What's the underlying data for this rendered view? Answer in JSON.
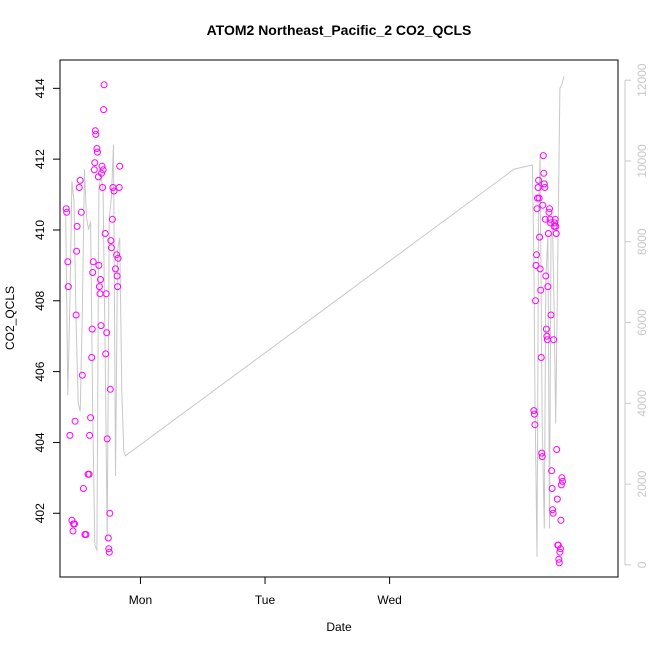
{
  "chart_data": {
    "type": "scatter",
    "title": "ATOM2 Northeast_Pacific_2 CO2_QCLS",
    "xlabel": "Date",
    "ylabel": "CO2_QCLS",
    "x_ticks": [
      "Mon",
      "Tue",
      "Wed"
    ],
    "y_ticks": [
      "402",
      "404",
      "406",
      "408",
      "410",
      "412",
      "414"
    ],
    "y2_ticks": [
      "0",
      "2000",
      "4000",
      "6000",
      "8000",
      "10000",
      "12000"
    ],
    "xlim_hours": [
      -15.5,
      92
    ],
    "ylim": [
      400.2,
      414.8
    ],
    "y2lim": [
      -300,
      12500
    ],
    "colors": {
      "points": "#ff00ff",
      "line": "#c8c8c8",
      "axis": "#000000",
      "right_axis": "#c8c8c8"
    },
    "series": [
      {
        "kind": "scatter",
        "points": [
          [
            -14.3,
            410.6
          ],
          [
            -14.2,
            410.5
          ],
          [
            -14.0,
            409.1
          ],
          [
            -13.9,
            408.4
          ],
          [
            -13.6,
            404.2
          ],
          [
            -13.2,
            401.8
          ],
          [
            -13.0,
            401.5
          ],
          [
            -12.9,
            401.7
          ],
          [
            -12.7,
            401.7
          ],
          [
            -12.6,
            404.6
          ],
          [
            -12.4,
            407.6
          ],
          [
            -12.3,
            409.4
          ],
          [
            -12.2,
            410.1
          ],
          [
            -11.8,
            411.2
          ],
          [
            -11.6,
            411.4
          ],
          [
            -11.4,
            410.5
          ],
          [
            -11.2,
            405.9
          ],
          [
            -11.0,
            402.7
          ],
          [
            -10.7,
            401.4
          ],
          [
            -10.5,
            401.4
          ],
          [
            -10.1,
            403.1
          ],
          [
            -9.9,
            403.1
          ],
          [
            -9.8,
            404.2
          ],
          [
            -9.6,
            404.7
          ],
          [
            -9.4,
            406.4
          ],
          [
            -9.3,
            407.2
          ],
          [
            -9.2,
            408.8
          ],
          [
            -9.1,
            409.1
          ],
          [
            -8.9,
            411.7
          ],
          [
            -8.8,
            411.9
          ],
          [
            -8.7,
            412.8
          ],
          [
            -8.6,
            412.7
          ],
          [
            -8.4,
            412.3
          ],
          [
            -8.3,
            412.2
          ],
          [
            -8.1,
            411.5
          ],
          [
            -8.0,
            409.0
          ],
          [
            -7.9,
            408.4
          ],
          [
            -7.8,
            408.2
          ],
          [
            -7.7,
            408.6
          ],
          [
            -7.6,
            407.3
          ],
          [
            -7.5,
            411.6
          ],
          [
            -7.4,
            411.8
          ],
          [
            -7.3,
            411.2
          ],
          [
            -7.2,
            411.7
          ],
          [
            -7.1,
            413.4
          ],
          [
            -7.0,
            414.1
          ],
          [
            -6.8,
            409.9
          ],
          [
            -6.7,
            406.5
          ],
          [
            -6.6,
            408.2
          ],
          [
            -6.5,
            407.1
          ],
          [
            -6.4,
            404.1
          ],
          [
            -6.2,
            401.3
          ],
          [
            -6.1,
            401.0
          ],
          [
            -6.0,
            400.9
          ],
          [
            -5.9,
            402.0
          ],
          [
            -5.8,
            405.5
          ],
          [
            -5.7,
            409.7
          ],
          [
            -5.6,
            409.5
          ],
          [
            -5.4,
            410.3
          ],
          [
            -5.3,
            411.2
          ],
          [
            -5.1,
            411.1
          ],
          [
            -4.8,
            408.9
          ],
          [
            -4.6,
            409.3
          ],
          [
            -4.5,
            408.7
          ],
          [
            -4.4,
            408.4
          ],
          [
            -4.3,
            409.2
          ],
          [
            -4.1,
            411.2
          ],
          [
            -4.0,
            411.8
          ],
          [
            75.8,
            404.9
          ],
          [
            75.9,
            404.8
          ],
          [
            76.0,
            404.5
          ],
          [
            76.1,
            408.0
          ],
          [
            76.2,
            409.0
          ],
          [
            76.3,
            409.3
          ],
          [
            76.4,
            410.6
          ],
          [
            76.5,
            410.9
          ],
          [
            76.6,
            411.2
          ],
          [
            76.7,
            411.4
          ],
          [
            76.8,
            410.9
          ],
          [
            76.9,
            409.8
          ],
          [
            77.0,
            408.9
          ],
          [
            77.1,
            408.3
          ],
          [
            77.2,
            406.4
          ],
          [
            77.3,
            403.7
          ],
          [
            77.4,
            403.6
          ],
          [
            77.5,
            410.7
          ],
          [
            77.6,
            412.1
          ],
          [
            77.7,
            411.6
          ],
          [
            77.8,
            411.3
          ],
          [
            77.9,
            411.2
          ],
          [
            78.0,
            410.3
          ],
          [
            78.1,
            408.7
          ],
          [
            78.2,
            407.2
          ],
          [
            78.3,
            407.0
          ],
          [
            78.4,
            406.9
          ],
          [
            78.5,
            408.4
          ],
          [
            78.6,
            409.9
          ],
          [
            78.7,
            410.5
          ],
          [
            78.8,
            410.6
          ],
          [
            78.9,
            410.3
          ],
          [
            79.0,
            410.2
          ],
          [
            79.1,
            407.6
          ],
          [
            79.2,
            403.2
          ],
          [
            79.3,
            402.7
          ],
          [
            79.4,
            402.1
          ],
          [
            79.5,
            402.0
          ],
          [
            79.6,
            406.9
          ],
          [
            79.7,
            410.1
          ],
          [
            79.8,
            410.2
          ],
          [
            79.9,
            410.3
          ],
          [
            80.0,
            410.1
          ],
          [
            80.1,
            409.9
          ],
          [
            80.2,
            403.8
          ],
          [
            80.3,
            402.4
          ],
          [
            80.4,
            401.1
          ],
          [
            80.5,
            401.1
          ],
          [
            80.6,
            400.7
          ],
          [
            80.7,
            400.6
          ],
          [
            80.8,
            400.9
          ],
          [
            80.9,
            401.0
          ],
          [
            81.0,
            401.8
          ],
          [
            81.1,
            402.8
          ],
          [
            81.2,
            403.0
          ],
          [
            81.3,
            402.9
          ]
        ]
      },
      {
        "kind": "line",
        "points": [
          [
            -14.4,
            8700
          ],
          [
            -14.0,
            4200
          ],
          [
            -13.6,
            6500
          ],
          [
            -13.2,
            9500
          ],
          [
            -12.8,
            9000
          ],
          [
            -12.4,
            6000
          ],
          [
            -12.0,
            4000
          ],
          [
            -11.6,
            3800
          ],
          [
            -11.2,
            6200
          ],
          [
            -10.8,
            9800
          ],
          [
            -10.4,
            8600
          ],
          [
            -10.0,
            8300
          ],
          [
            -9.6,
            8500
          ],
          [
            -9.2,
            3800
          ],
          [
            -8.8,
            500
          ],
          [
            -8.4,
            350
          ],
          [
            -8.0,
            9300
          ],
          [
            -7.6,
            9700
          ],
          [
            -7.2,
            9200
          ],
          [
            -6.8,
            5200
          ],
          [
            -6.4,
            600
          ],
          [
            -6.0,
            8600
          ],
          [
            -5.6,
            9100
          ],
          [
            -5.2,
            10400
          ],
          [
            -4.8,
            2200
          ],
          [
            -4.4,
            7800
          ],
          [
            -4.0,
            8100
          ],
          [
            -3.6,
            4300
          ],
          [
            -3.2,
            2800
          ],
          [
            -2.9,
            2700
          ],
          [
            72.0,
            9800
          ],
          [
            75.5,
            9900
          ],
          [
            75.8,
            7500
          ],
          [
            76.0,
            4300
          ],
          [
            76.4,
            200
          ],
          [
            76.7,
            8800
          ],
          [
            77.0,
            10100
          ],
          [
            77.4,
            3500
          ],
          [
            77.8,
            900
          ],
          [
            78.1,
            7000
          ],
          [
            78.5,
            8200
          ],
          [
            78.8,
            900
          ],
          [
            79.1,
            8100
          ],
          [
            79.4,
            8300
          ],
          [
            79.7,
            6200
          ],
          [
            80.0,
            3500
          ],
          [
            80.4,
            7600
          ],
          [
            80.8,
            11800
          ],
          [
            81.2,
            11900
          ],
          [
            81.6,
            12100
          ]
        ]
      }
    ]
  }
}
